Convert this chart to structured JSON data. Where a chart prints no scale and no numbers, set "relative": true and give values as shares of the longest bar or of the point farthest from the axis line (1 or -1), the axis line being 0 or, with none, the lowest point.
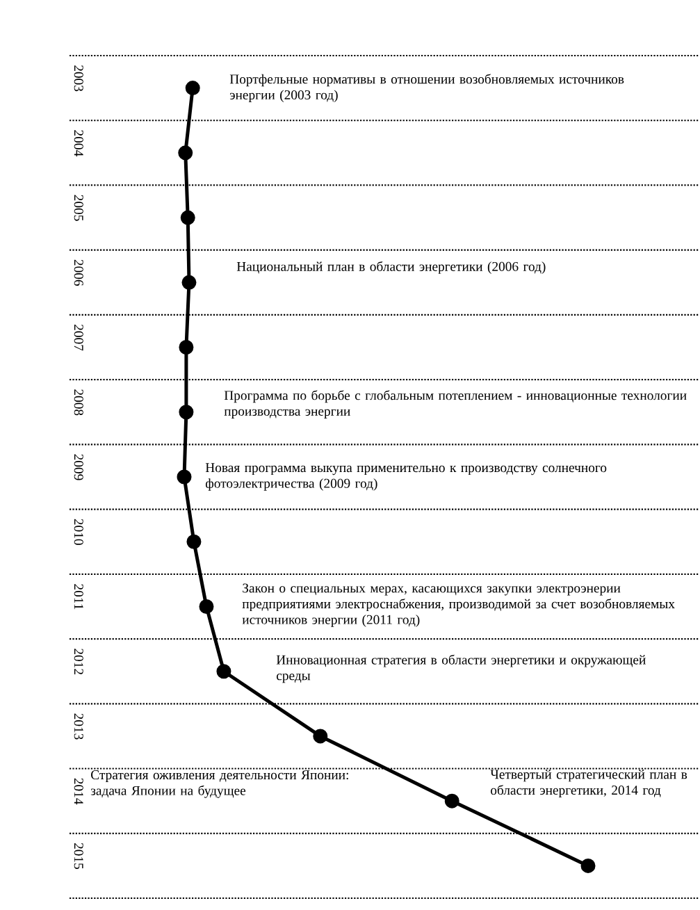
{
  "chart_data": {
    "type": "line",
    "orientation": "horizontal",
    "relative": true,
    "color": "#000000",
    "marker": "circle",
    "grid": true,
    "categories": [
      "2003",
      "2004",
      "2005",
      "2006",
      "2007",
      "2008",
      "2009",
      "2010",
      "2011",
      "2012",
      "2013",
      "2014",
      "2015"
    ],
    "values": [
      0.021,
      0.003,
      0.009,
      0.012,
      0.005,
      0.005,
      0,
      0.024,
      0.055,
      0.098,
      0.337,
      0.663,
      1
    ],
    "annotations": [
      "Портфельные нормативы в отношении возобновляемых источников энергии (2003 год)",
      "Национальный план в области энергетики (2006 год)",
      "Программа по борьбе с глобальным потеплением - инновационные технологии производства энергии",
      "Новая программа выкупа применительно к производству солнечного фотоэлектричества (2009 год)",
      "Закон о специальных мерах, касающихся закупки электроэнерии предприятиями электроснабжения, производимой за счет возобновляемых источников энергии (2011 год)",
      "Инновационная стратегия в области энергетики и окружающей среды",
      "Стратегия оживления деятельности Японии: задача Японии на будущее",
      "Четвертый стратегический план в области энергетики, 2014 год"
    ]
  }
}
